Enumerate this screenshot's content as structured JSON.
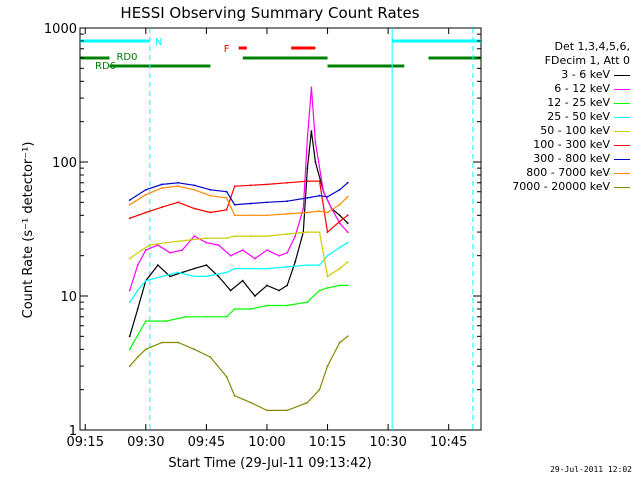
{
  "chart_data": {
    "type": "line",
    "title": "HESSI Observing Summary Count Rates",
    "xlabel": "Start Time (29-Jul-11 09:13:42)",
    "ylabel": "Count Rate (s⁻¹ detector⁻¹)",
    "y_scale": "log",
    "xlim": [
      "09:13:42",
      "10:53:00"
    ],
    "ylim": [
      1,
      1000
    ],
    "x_ticks": [
      "09:15",
      "09:30",
      "09:45",
      "10:00",
      "10:15",
      "10:30",
      "10:45"
    ],
    "y_ticks": [
      1,
      10,
      100,
      1000
    ],
    "y_tick_labels": [
      "1",
      "10",
      "100",
      "1000"
    ],
    "legend_header": [
      "Det 1,3,4,5,6,",
      "FDecim 1, Att 0"
    ],
    "series": [
      {
        "name": "3 - 6 keV",
        "color": "#000000",
        "x": [
          "09:26",
          "09:28",
          "09:30",
          "09:33",
          "09:36",
          "09:39",
          "09:42",
          "09:45",
          "09:48",
          "09:51",
          "09:54",
          "09:57",
          "10:00",
          "10:03",
          "10:05",
          "10:07",
          "10:09",
          "10:10",
          "10:11",
          "10:12",
          "10:14",
          "10:16",
          "10:18",
          "10:20"
        ],
        "values": [
          5,
          8,
          13,
          17,
          14,
          15,
          16,
          17,
          14,
          11,
          13,
          10,
          12,
          11,
          12,
          18,
          30,
          90,
          170,
          100,
          60,
          45,
          40,
          35
        ]
      },
      {
        "name": "6 - 12 keV",
        "color": "#ff00ff",
        "x": [
          "09:26",
          "09:28",
          "09:30",
          "09:33",
          "09:36",
          "09:39",
          "09:42",
          "09:45",
          "09:48",
          "09:51",
          "09:54",
          "09:57",
          "10:00",
          "10:03",
          "10:05",
          "10:07",
          "10:09",
          "10:10",
          "10:11",
          "10:12",
          "10:14",
          "10:16",
          "10:18",
          "10:20"
        ],
        "values": [
          11,
          17,
          22,
          24,
          21,
          22,
          28,
          25,
          24,
          20,
          22,
          19,
          22,
          20,
          21,
          28,
          45,
          150,
          360,
          140,
          60,
          45,
          35,
          30
        ]
      },
      {
        "name": "12 - 25 keV",
        "color": "#00ff00",
        "x": [
          "09:26",
          "09:30",
          "09:35",
          "09:40",
          "09:45",
          "09:50",
          "09:52",
          "09:56",
          "10:00",
          "10:05",
          "10:10",
          "10:13",
          "10:15",
          "10:18",
          "10:20"
        ],
        "values": [
          4,
          6.5,
          6.5,
          7,
          7,
          7,
          8,
          8,
          8.5,
          8.5,
          9,
          11,
          11.5,
          12,
          12
        ]
      },
      {
        "name": "25 - 50 keV",
        "color": "#00ffff",
        "x": [
          "09:26",
          "09:28",
          "09:30",
          "09:34",
          "09:38",
          "09:42",
          "09:45",
          "09:50",
          "09:52",
          "09:56",
          "10:00",
          "10:05",
          "10:10",
          "10:13",
          "10:15",
          "10:18",
          "10:20"
        ],
        "values": [
          9,
          11,
          13,
          14,
          15,
          14,
          14,
          15,
          16,
          16,
          16,
          16.5,
          17,
          17,
          20,
          23,
          25
        ]
      },
      {
        "name": "50 - 100 keV",
        "color": "#cccc00",
        "x": [
          "09:26",
          "09:29",
          "09:31",
          "09:35",
          "09:40",
          "09:45",
          "09:50",
          "09:52",
          "09:56",
          "10:00",
          "10:05",
          "10:10",
          "10:13",
          "10:15",
          "10:18",
          "10:20"
        ],
        "values": [
          19,
          22,
          24,
          25,
          26,
          27,
          27,
          28,
          28,
          28,
          29,
          30,
          30,
          14,
          16,
          18
        ]
      },
      {
        "name": "100 - 300 keV",
        "color": "#ff0000",
        "x": [
          "09:26",
          "09:30",
          "09:34",
          "09:38",
          "09:42",
          "09:46",
          "09:50",
          "09:52",
          "09:56",
          "10:00",
          "10:05",
          "10:10",
          "10:13",
          "10:15",
          "10:18",
          "10:20"
        ],
        "values": [
          38,
          42,
          46,
          50,
          45,
          42,
          44,
          66,
          67,
          68,
          70,
          72,
          72,
          30,
          36,
          40
        ]
      },
      {
        "name": "300 - 800 keV",
        "color": "#0000cc",
        "x": [
          "09:26",
          "09:30",
          "09:34",
          "09:38",
          "09:42",
          "09:46",
          "09:50",
          "09:52",
          "09:56",
          "10:00",
          "10:05",
          "10:10",
          "10:13",
          "10:15",
          "10:18",
          "10:20"
        ],
        "values": [
          52,
          62,
          68,
          70,
          67,
          62,
          60,
          48,
          49,
          50,
          51,
          54,
          56,
          55,
          62,
          70
        ]
      },
      {
        "name": "800 - 7000 keV",
        "color": "#ff8800",
        "x": [
          "09:26",
          "09:30",
          "09:34",
          "09:38",
          "09:42",
          "09:46",
          "09:50",
          "09:52",
          "09:56",
          "10:00",
          "10:05",
          "10:10",
          "10:13",
          "10:15",
          "10:18",
          "10:20"
        ],
        "values": [
          48,
          57,
          64,
          66,
          62,
          56,
          54,
          40,
          40,
          40,
          41,
          42,
          43,
          42,
          48,
          55
        ]
      },
      {
        "name": "7000 - 20000 keV",
        "color": "#888800",
        "x": [
          "09:26",
          "09:28",
          "09:30",
          "09:34",
          "09:38",
          "09:42",
          "09:46",
          "09:50",
          "09:52",
          "09:56",
          "10:00",
          "10:05",
          "10:10",
          "10:13",
          "10:15",
          "10:18",
          "10:20"
        ],
        "values": [
          3,
          3.5,
          4,
          4.5,
          4.5,
          4,
          3.5,
          2.5,
          1.8,
          1.6,
          1.4,
          1.4,
          1.6,
          2,
          3,
          4.5,
          5
        ]
      }
    ],
    "flag_bars": [
      {
        "label": "N",
        "color": "#00ffff",
        "segments": [
          [
            "09:13:42",
            "09:31"
          ],
          [
            "10:31",
            "10:53"
          ]
        ]
      },
      {
        "label": "F",
        "color": "#ff0000",
        "segments": [
          [
            "09:53",
            "09:55"
          ],
          [
            "10:06",
            "10:12"
          ]
        ]
      },
      {
        "label": "RD0",
        "color": "#008000",
        "segments": [
          [
            "09:13:42",
            "09:21"
          ],
          [
            "09:54",
            "10:15"
          ],
          [
            "10:40",
            "10:53"
          ]
        ]
      },
      {
        "label": "RD6",
        "color": "#008000",
        "segments": [
          [
            "09:21",
            "09:46"
          ],
          [
            "10:15",
            "10:34"
          ]
        ]
      }
    ],
    "vertical_lines": [
      {
        "x": "09:31",
        "color": "#00ffff",
        "style": "dashed"
      },
      {
        "x": "10:31",
        "color": "#00ffff",
        "style": "solid"
      },
      {
        "x": "10:51",
        "color": "#00ffff",
        "style": "dashed"
      }
    ],
    "grid": false,
    "legend_position": "right"
  },
  "footer": {
    "datestamp": "29-Jul-2011 12:02"
  }
}
